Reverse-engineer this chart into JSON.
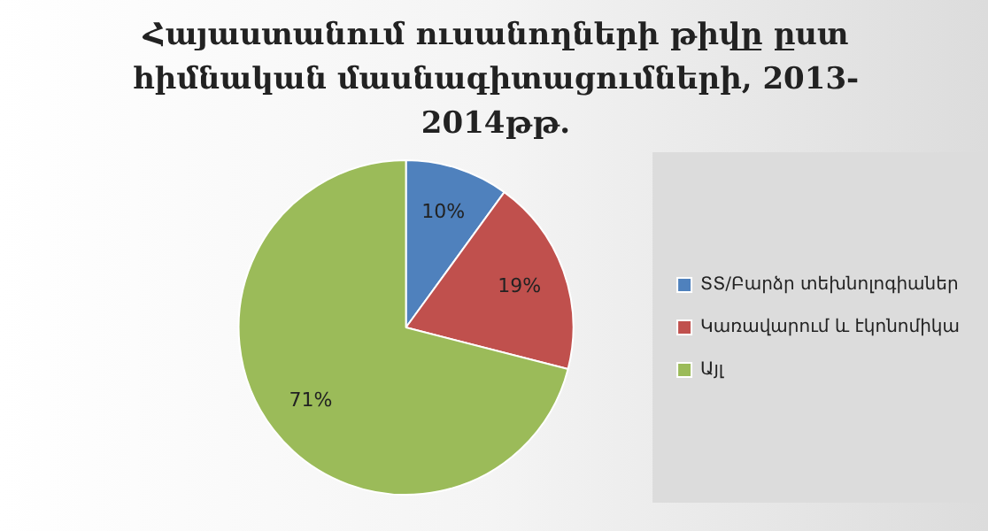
{
  "chart_data": {
    "type": "pie",
    "title": "Հայաստանում ուսանողների թիվը ըստ հիմնական մասնագիտացումների, 2013-2014թթ.",
    "categories": [
      "ՏՏ/Բարձր տեխնոլոգիաներ",
      "Կառավարում և էկոնոմիկա",
      "Այլ"
    ],
    "values": [
      10,
      19,
      71
    ],
    "value_labels": [
      "10%",
      "19%",
      "71%"
    ],
    "colors": [
      "#4f81bd",
      "#c0504d",
      "#9bbb59"
    ],
    "legend": "right"
  }
}
